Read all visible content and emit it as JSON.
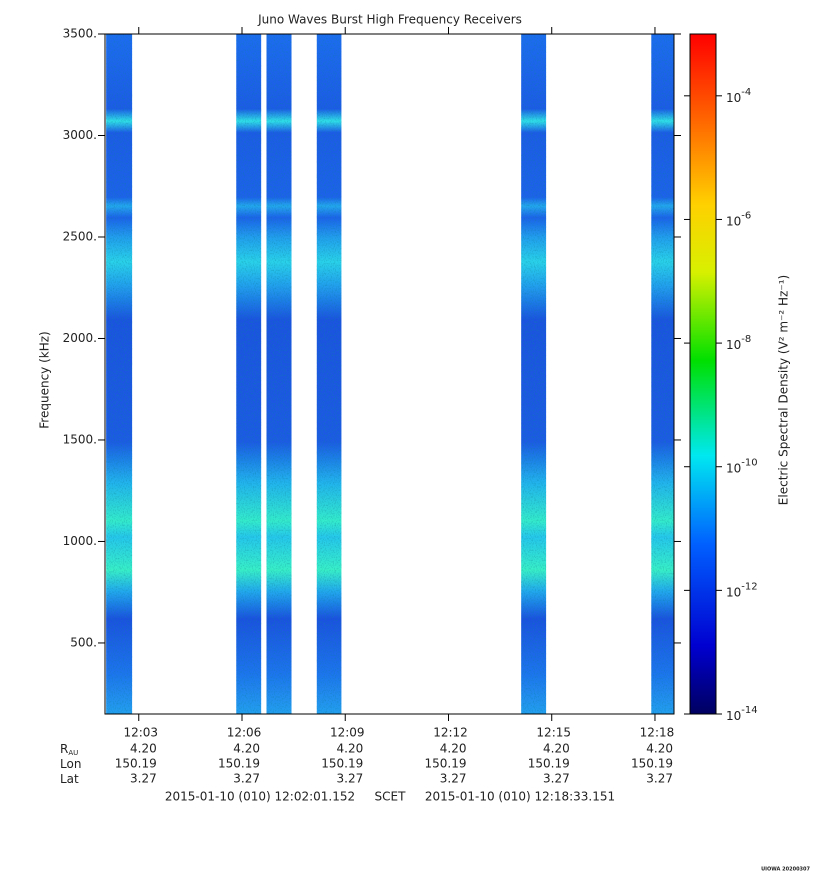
{
  "chart_data": {
    "type": "spectrogram",
    "title": "Juno Waves Burst High Frequency Receivers",
    "ylabel": "Frequency (kHz)",
    "colorbar_label": "Electric Spectral Density (V² m⁻² Hz⁻¹)",
    "xlim": [
      722.019,
      738.553
    ],
    "xticks": [
      {
        "value": 723,
        "label": "12:03"
      },
      {
        "value": 726,
        "label": "12:06"
      },
      {
        "value": 729,
        "label": "12:09"
      },
      {
        "value": 732,
        "label": "12:12"
      },
      {
        "value": 735,
        "label": "12:15"
      },
      {
        "value": 738,
        "label": "12:18"
      }
    ],
    "ylim": [
      150,
      3500
    ],
    "yticks": [
      {
        "value": 500,
        "label": "500."
      },
      {
        "value": 1000,
        "label": "1000."
      },
      {
        "value": 1500,
        "label": "1500."
      },
      {
        "value": 2000,
        "label": "2000."
      },
      {
        "value": 2500,
        "label": "2500."
      },
      {
        "value": 3000,
        "label": "3000."
      },
      {
        "value": 3500,
        "label": "3500."
      }
    ],
    "zlim": [
      1e-14,
      0.001
    ],
    "zscale": "log",
    "zticks": [
      {
        "value": 1e-14,
        "base": "10",
        "exponent": "-14"
      },
      {
        "value": 1e-12,
        "base": "10",
        "exponent": "-12"
      },
      {
        "value": 1e-10,
        "base": "10",
        "exponent": "-10"
      },
      {
        "value": 1e-08,
        "base": "10",
        "exponent": "-8"
      },
      {
        "value": 1e-06,
        "base": "10",
        "exponent": "-6"
      },
      {
        "value": 0.0001,
        "base": "10",
        "exponent": "-4"
      }
    ],
    "segments": [
      {
        "start": 722.05,
        "end": 722.81
      },
      {
        "start": 725.83,
        "end": 726.56
      },
      {
        "start": 726.71,
        "end": 727.44
      },
      {
        "start": 728.17,
        "end": 728.89
      },
      {
        "start": 734.11,
        "end": 734.84
      },
      {
        "start": 737.89,
        "end": 738.55
      }
    ],
    "ephemeris": [
      {
        "label": "R",
        "label_sub": "AU",
        "values": [
          "4.20",
          "4.20",
          "4.20",
          "4.20",
          "4.20",
          "4.20"
        ]
      },
      {
        "label": "Lon",
        "values": [
          "150.19",
          "150.19",
          "150.19",
          "150.19",
          "150.19",
          "150.19"
        ]
      },
      {
        "label": "Lat",
        "values": [
          "3.27",
          "3.27",
          "3.27",
          "3.27",
          "3.27",
          "3.27"
        ]
      }
    ],
    "time_start": "2015-01-10 (010) 12:02:01.152",
    "time_system": "SCET",
    "time_end": "2015-01-10 (010) 12:18:33.151",
    "stamp": "UIOWA 20200307"
  }
}
